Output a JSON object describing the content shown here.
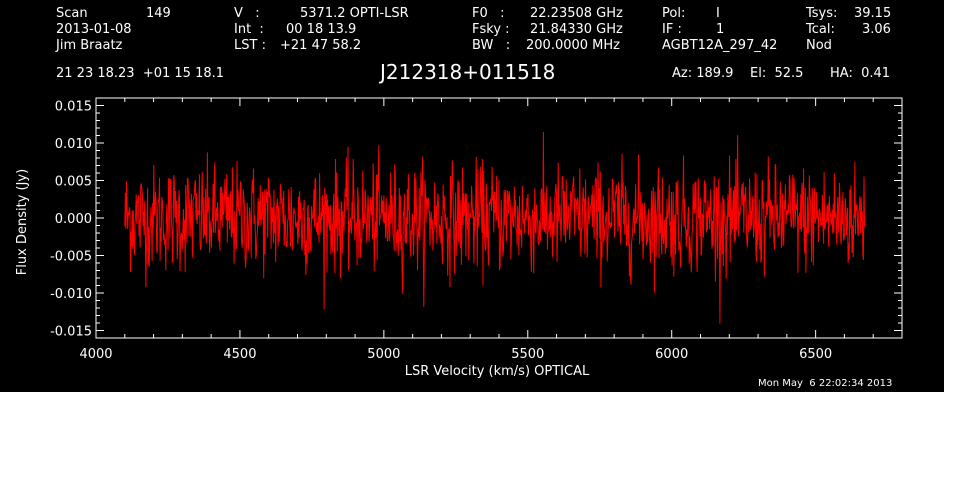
{
  "header": {
    "scan_label": "Scan",
    "scan_value": "149",
    "date": "2013-01-08",
    "observer": "Jim Braatz",
    "v_label": "V   :",
    "v_value": "5371.2 OPTI-LSR",
    "int_label": "Int  :",
    "int_value": "00 18 13.9",
    "lst_label": "LST :",
    "lst_value": "+21 47 58.2",
    "f0_label": "F0   :",
    "f0_value": "22.23508 GHz",
    "fsky_label": "Fsky :",
    "fsky_value": "21.84330 GHz",
    "bw_label": "BW   :",
    "bw_value": "200.0000 MHz",
    "pol_label": "Pol:",
    "pol_value": "I",
    "if_label": "IF :",
    "if_value": "1",
    "project": "AGBT12A_297_42",
    "tsys_label": "Tsys:",
    "tsys_value": "39.15",
    "tcal_label": "Tcal:",
    "tcal_value": "3.06",
    "mode": "Nod",
    "coords": "21 23 18.23  +01 15 18.1",
    "az": "Az: 189.9",
    "el": "El:  52.5",
    "ha": "HA:  0.41",
    "timestamp": "Mon May  6 22:02:34 2013"
  },
  "chart_data": {
    "type": "line",
    "title": "J212318+011518",
    "xlabel": "LSR Velocity (km/s) OPTICAL",
    "ylabel": "Flux Density (Jy)",
    "xlim": [
      4000,
      6800
    ],
    "ylim": [
      -0.016,
      0.016
    ],
    "x_ticks": [
      4000,
      4500,
      5000,
      5500,
      6000,
      6500
    ],
    "y_ticks": [
      -0.015,
      -0.01,
      -0.005,
      0.0,
      0.005,
      0.01,
      0.015
    ],
    "y_tick_labels": [
      "-0.015",
      "-0.010",
      "-0.005",
      "0.000",
      "0.005",
      "0.010",
      "0.015"
    ],
    "series": [
      {
        "x_start": 4100,
        "x_end": 6670,
        "n_points": 1300,
        "noise_rms": 0.0035,
        "mean": 0.0,
        "color": "#ff0000"
      }
    ]
  }
}
